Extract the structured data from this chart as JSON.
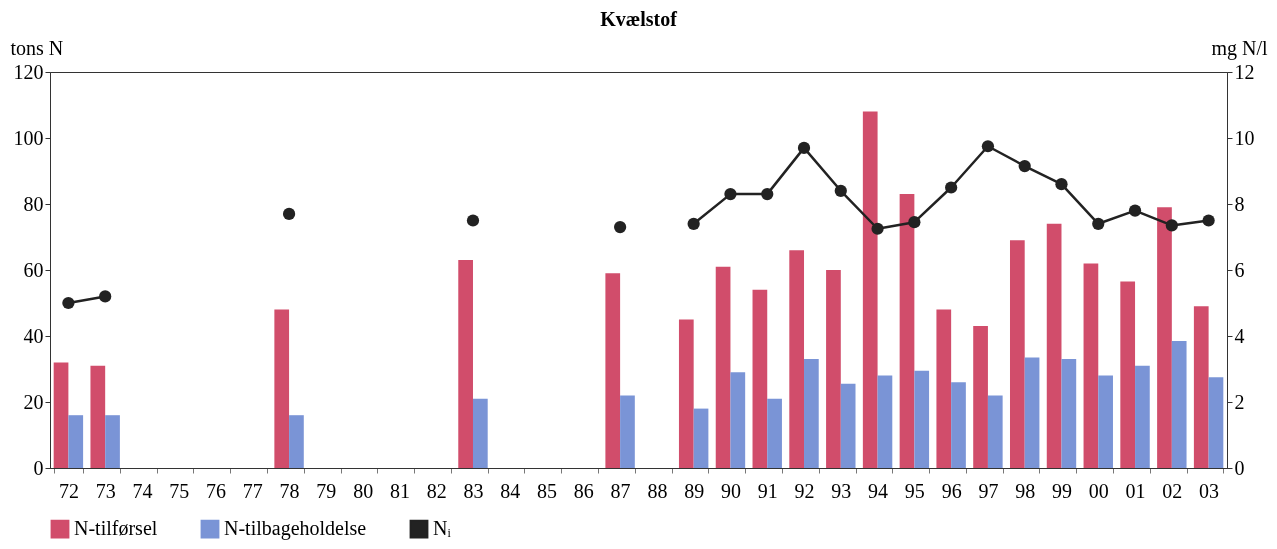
{
  "chart_data": {
    "type": "bar",
    "title": "Kvælstof",
    "ylabel": "tons N",
    "y2label": "mg N/l",
    "categories": [
      "72",
      "73",
      "74",
      "75",
      "76",
      "77",
      "78",
      "79",
      "80",
      "81",
      "82",
      "83",
      "84",
      "85",
      "86",
      "87",
      "88",
      "89",
      "90",
      "91",
      "92",
      "93",
      "94",
      "95",
      "96",
      "97",
      "98",
      "99",
      "00",
      "01",
      "02",
      "03"
    ],
    "series": [
      {
        "name": "N-tilførsel",
        "color": "#d14d6b",
        "values": [
          32,
          31,
          null,
          null,
          null,
          null,
          48,
          null,
          null,
          null,
          null,
          63,
          null,
          null,
          null,
          59,
          null,
          45,
          61,
          54,
          66,
          60,
          108,
          83,
          48,
          43,
          69,
          74,
          62,
          56.5,
          79,
          49
        ]
      },
      {
        "name": "N-tilbageholdelse",
        "color": "#7a94d6",
        "values": [
          16,
          16,
          null,
          null,
          null,
          null,
          16,
          null,
          null,
          null,
          null,
          21,
          null,
          null,
          null,
          22,
          null,
          18,
          29,
          21,
          33,
          25.5,
          28,
          29.5,
          26,
          22,
          33.5,
          33,
          28,
          31,
          38.5,
          27.5
        ]
      },
      {
        "name": "Nᵢ",
        "type": "line",
        "axis": "y2",
        "color": "#222222",
        "values": [
          5.0,
          5.2,
          null,
          null,
          null,
          null,
          7.7,
          null,
          null,
          null,
          null,
          7.5,
          null,
          null,
          null,
          7.3,
          null,
          7.4,
          8.3,
          8.3,
          9.7,
          8.4,
          7.25,
          7.45,
          8.5,
          9.75,
          9.15,
          8.6,
          7.4,
          7.8,
          7.35,
          7.5
        ]
      }
    ],
    "ylim": [
      0,
      120
    ],
    "yticks": [
      0,
      20,
      40,
      60,
      80,
      100,
      120
    ],
    "y2lim": [
      0,
      12
    ],
    "y2ticks": [
      0,
      2,
      4,
      6,
      8,
      10,
      12
    ],
    "grid": false,
    "legend": "bottom",
    "marker": "circle",
    "line_style": "solid"
  }
}
